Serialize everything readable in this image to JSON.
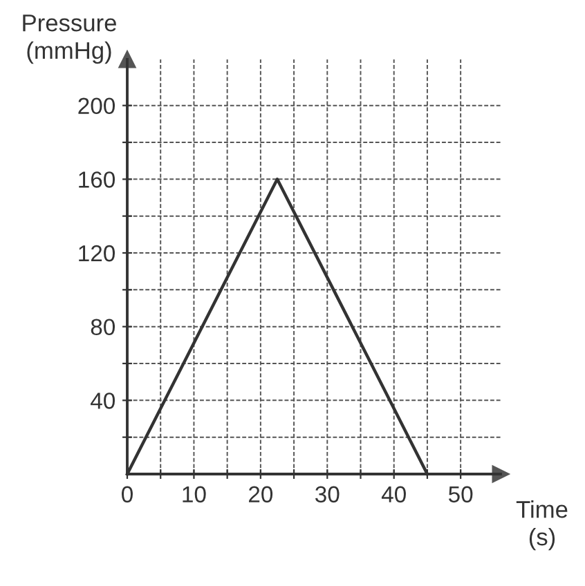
{
  "chart_data": {
    "type": "line",
    "xlabel": "Time\n(s)",
    "ylabel": "Pressure\n(mmHg)",
    "x": [
      0,
      22.5,
      45
    ],
    "series": [
      {
        "color": "#333333",
        "values": [
          0,
          160,
          0
        ]
      }
    ],
    "xlim": [
      0,
      56
    ],
    "ylim": [
      0,
      225
    ],
    "xticks": [
      0,
      {
        "value": 5,
        "label": null
      },
      10,
      {
        "value": 15,
        "label": null
      },
      20,
      {
        "value": 25,
        "label": null
      },
      30,
      {
        "value": 35,
        "label": null
      },
      40,
      {
        "value": 45,
        "label": null
      },
      50
    ],
    "yticks": [
      {
        "value": 20,
        "label": null
      },
      40,
      {
        "value": 60,
        "label": null
      },
      80,
      {
        "value": 100,
        "label": null
      },
      120,
      {
        "value": 140,
        "label": null
      },
      160,
      {
        "value": 180,
        "label": null
      },
      200
    ],
    "grid": true,
    "marker": "none",
    "line_style": "solid"
  }
}
